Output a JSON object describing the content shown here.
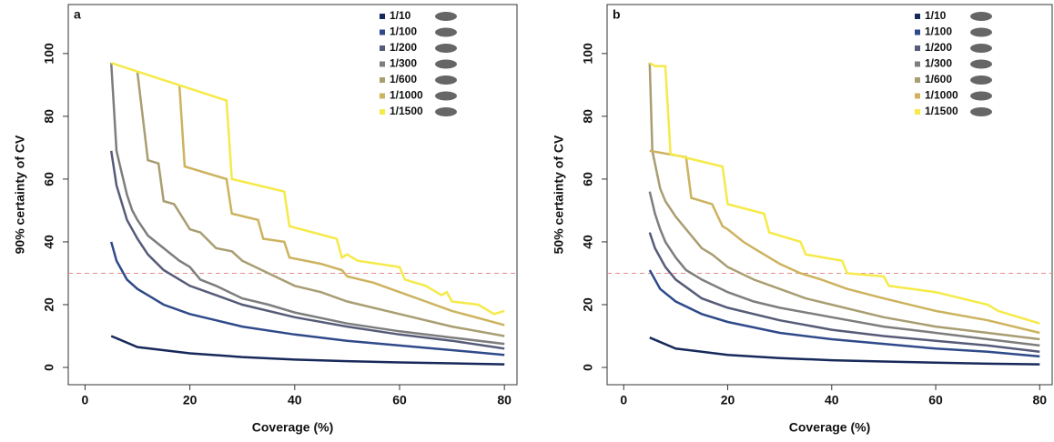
{
  "chart_data": [
    {
      "type": "line",
      "panel_label": "a",
      "x_label": "Coverage (%)",
      "y_label": "90% certainty of CV",
      "xlim": [
        -3.2,
        82.4
      ],
      "ylim": [
        -5.5,
        115.6
      ],
      "xticks": [
        0,
        20,
        40,
        60,
        80
      ],
      "yticks": [
        0,
        20,
        40,
        60,
        80,
        100
      ],
      "hline": {
        "value": 30,
        "color": "#e88a8a"
      },
      "legend": "top-right",
      "series": [
        {
          "name": "1/10",
          "color": "#17295a",
          "x": [
            5,
            10,
            20,
            30,
            40,
            50,
            60,
            70,
            80
          ],
          "values": [
            10,
            6.5,
            4.5,
            3.3,
            2.5,
            2,
            1.6,
            1.3,
            1
          ]
        },
        {
          "name": "1/100",
          "color": "#2f4a8a",
          "x": [
            5,
            6,
            7,
            8,
            10,
            12,
            15,
            20,
            25,
            30,
            40,
            50,
            60,
            70,
            80
          ],
          "values": [
            40,
            34,
            31,
            28,
            25,
            23,
            20,
            17,
            15,
            13,
            10.5,
            8.5,
            7,
            5.5,
            4
          ]
        },
        {
          "name": "1/200",
          "color": "#565b78",
          "x": [
            5,
            6,
            8,
            10,
            12,
            15,
            20,
            25,
            30,
            40,
            50,
            60,
            70,
            80
          ],
          "values": [
            69,
            58,
            47,
            41,
            36,
            31,
            26,
            23,
            20,
            16,
            13,
            10.5,
            8.5,
            6
          ]
        },
        {
          "name": "1/300",
          "color": "#7d7d7d",
          "x": [
            5,
            6,
            7,
            8,
            9,
            10,
            12,
            15,
            18,
            20,
            22,
            25,
            30,
            35,
            40,
            50,
            60,
            70,
            80
          ],
          "values": [
            97,
            69,
            62,
            55,
            50,
            47,
            42,
            38,
            34,
            32,
            28,
            26,
            22,
            20,
            17.5,
            14,
            11.5,
            9.5,
            7.5
          ]
        },
        {
          "name": "1/600",
          "color": "#a99d72",
          "x": [
            10,
            12,
            14,
            15,
            17,
            20,
            22,
            25,
            28,
            30,
            35,
            40,
            45,
            50,
            60,
            70,
            80
          ],
          "values": [
            94,
            66,
            65,
            53,
            52,
            44,
            43,
            38,
            37,
            34,
            30,
            26,
            24,
            21,
            17,
            13,
            10
          ]
        },
        {
          "name": "1/1000",
          "color": "#cdb35e",
          "x": [
            18,
            19,
            27,
            28,
            33,
            34,
            38,
            39,
            45,
            49,
            50,
            55,
            60,
            65,
            70,
            80
          ],
          "values": [
            90,
            64,
            60,
            49,
            47,
            41,
            40,
            35,
            33,
            31,
            29,
            27,
            24,
            21,
            18,
            13.5
          ]
        },
        {
          "name": "1/1500",
          "color": "#f5ea48",
          "x": [
            5,
            27,
            28,
            38,
            39,
            48,
            49,
            50,
            52,
            60,
            61,
            65,
            68,
            69,
            70,
            75,
            78,
            80
          ],
          "values": [
            97,
            85,
            60,
            56,
            45,
            41,
            35,
            36,
            34,
            32,
            28,
            26,
            23,
            24,
            21,
            20,
            17,
            18
          ]
        }
      ]
    },
    {
      "type": "line",
      "panel_label": "b",
      "x_label": "Coverage (%)",
      "y_label": "50% certainty of CV",
      "xlim": [
        -3.2,
        82.4
      ],
      "ylim": [
        -5.5,
        115.6
      ],
      "xticks": [
        0,
        20,
        40,
        60,
        80
      ],
      "yticks": [
        0,
        20,
        40,
        60,
        80,
        100
      ],
      "hline": {
        "value": 30,
        "color": "#e88a8a"
      },
      "legend": "top-right",
      "series": [
        {
          "name": "1/10",
          "color": "#17295a",
          "x": [
            5,
            10,
            20,
            30,
            40,
            50,
            60,
            70,
            80
          ],
          "values": [
            9.5,
            6,
            4,
            3,
            2.3,
            1.9,
            1.5,
            1.2,
            1
          ]
        },
        {
          "name": "1/100",
          "color": "#2f4a8a",
          "x": [
            5,
            7,
            10,
            15,
            20,
            30,
            40,
            50,
            60,
            70,
            80
          ],
          "values": [
            31,
            25,
            21,
            17,
            14.5,
            11,
            9,
            7.5,
            6,
            5,
            3.5
          ]
        },
        {
          "name": "1/200",
          "color": "#565b78",
          "x": [
            5,
            6,
            8,
            10,
            15,
            20,
            30,
            40,
            50,
            60,
            70,
            80
          ],
          "values": [
            43,
            38,
            32,
            28,
            22,
            19,
            15,
            12,
            10,
            8.5,
            7,
            5
          ]
        },
        {
          "name": "1/300",
          "color": "#7d7d7d",
          "x": [
            5,
            6,
            7,
            8,
            10,
            12,
            15,
            20,
            25,
            30,
            40,
            50,
            60,
            70,
            80
          ],
          "values": [
            56,
            49,
            44,
            40,
            35,
            31,
            28,
            24,
            21,
            19,
            16,
            13,
            11,
            9,
            7
          ]
        },
        {
          "name": "1/600",
          "color": "#a99d72",
          "x": [
            5,
            5.5,
            7,
            8,
            10,
            12,
            13,
            15,
            17,
            20,
            25,
            30,
            35,
            40,
            50,
            60,
            70,
            80
          ],
          "values": [
            97,
            69,
            57,
            53,
            48,
            44,
            42,
            38,
            36,
            32,
            28,
            25,
            22,
            20,
            16,
            13,
            11,
            9
          ]
        },
        {
          "name": "1/1000",
          "color": "#cdb35e",
          "x": [
            5,
            12,
            13,
            17,
            19,
            20,
            23,
            25,
            27,
            30,
            34,
            38,
            43,
            50,
            60,
            70,
            80
          ],
          "values": [
            69,
            67,
            54,
            52,
            45,
            44,
            40,
            38,
            36,
            33,
            30,
            28,
            25,
            22,
            18,
            15,
            11
          ]
        },
        {
          "name": "1/1500",
          "color": "#f5ea48",
          "x": [
            5,
            6,
            8,
            9,
            19,
            20,
            27,
            28,
            34,
            35,
            42,
            43,
            50,
            51,
            60,
            70,
            72,
            80
          ],
          "values": [
            97,
            96,
            96,
            68,
            64,
            52,
            49,
            43,
            40,
            36,
            34,
            30,
            29,
            26,
            24,
            20,
            18,
            14
          ]
        }
      ]
    }
  ]
}
